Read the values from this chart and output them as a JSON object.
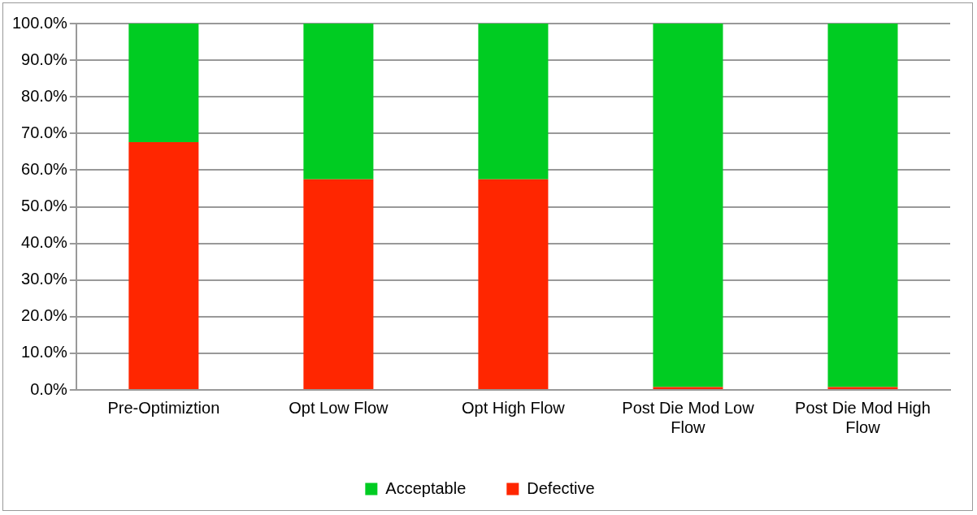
{
  "chart_data": {
    "type": "bar",
    "stacked": true,
    "categories": [
      "Pre-Optimiztion",
      "Opt Low Flow",
      "Opt High Flow",
      "Post Die Mod Low Flow",
      "Post Die Mod High Flow"
    ],
    "series": [
      {
        "name": "Defective",
        "color": "#ff2600",
        "values": [
          67.6,
          57.5,
          57.5,
          0.8,
          0.8
        ]
      },
      {
        "name": "Acceptable",
        "color": "#00cc22",
        "values": [
          32.4,
          42.5,
          42.5,
          99.2,
          99.2
        ]
      }
    ],
    "ylim": [
      0,
      100
    ],
    "yticks": [
      {
        "value": 0,
        "label": "0.0%"
      },
      {
        "value": 10,
        "label": "10.0%"
      },
      {
        "value": 20,
        "label": "20.0%"
      },
      {
        "value": 30,
        "label": "30.0%"
      },
      {
        "value": 40,
        "label": "40.0%"
      },
      {
        "value": 50,
        "label": "50.0%"
      },
      {
        "value": 60,
        "label": "60.0%"
      },
      {
        "value": 70,
        "label": "70.0%"
      },
      {
        "value": 80,
        "label": "80.0%"
      },
      {
        "value": 90,
        "label": "90.0%"
      },
      {
        "value": 100,
        "label": "100.0%"
      }
    ],
    "grid": "y",
    "legend": "bottom"
  }
}
